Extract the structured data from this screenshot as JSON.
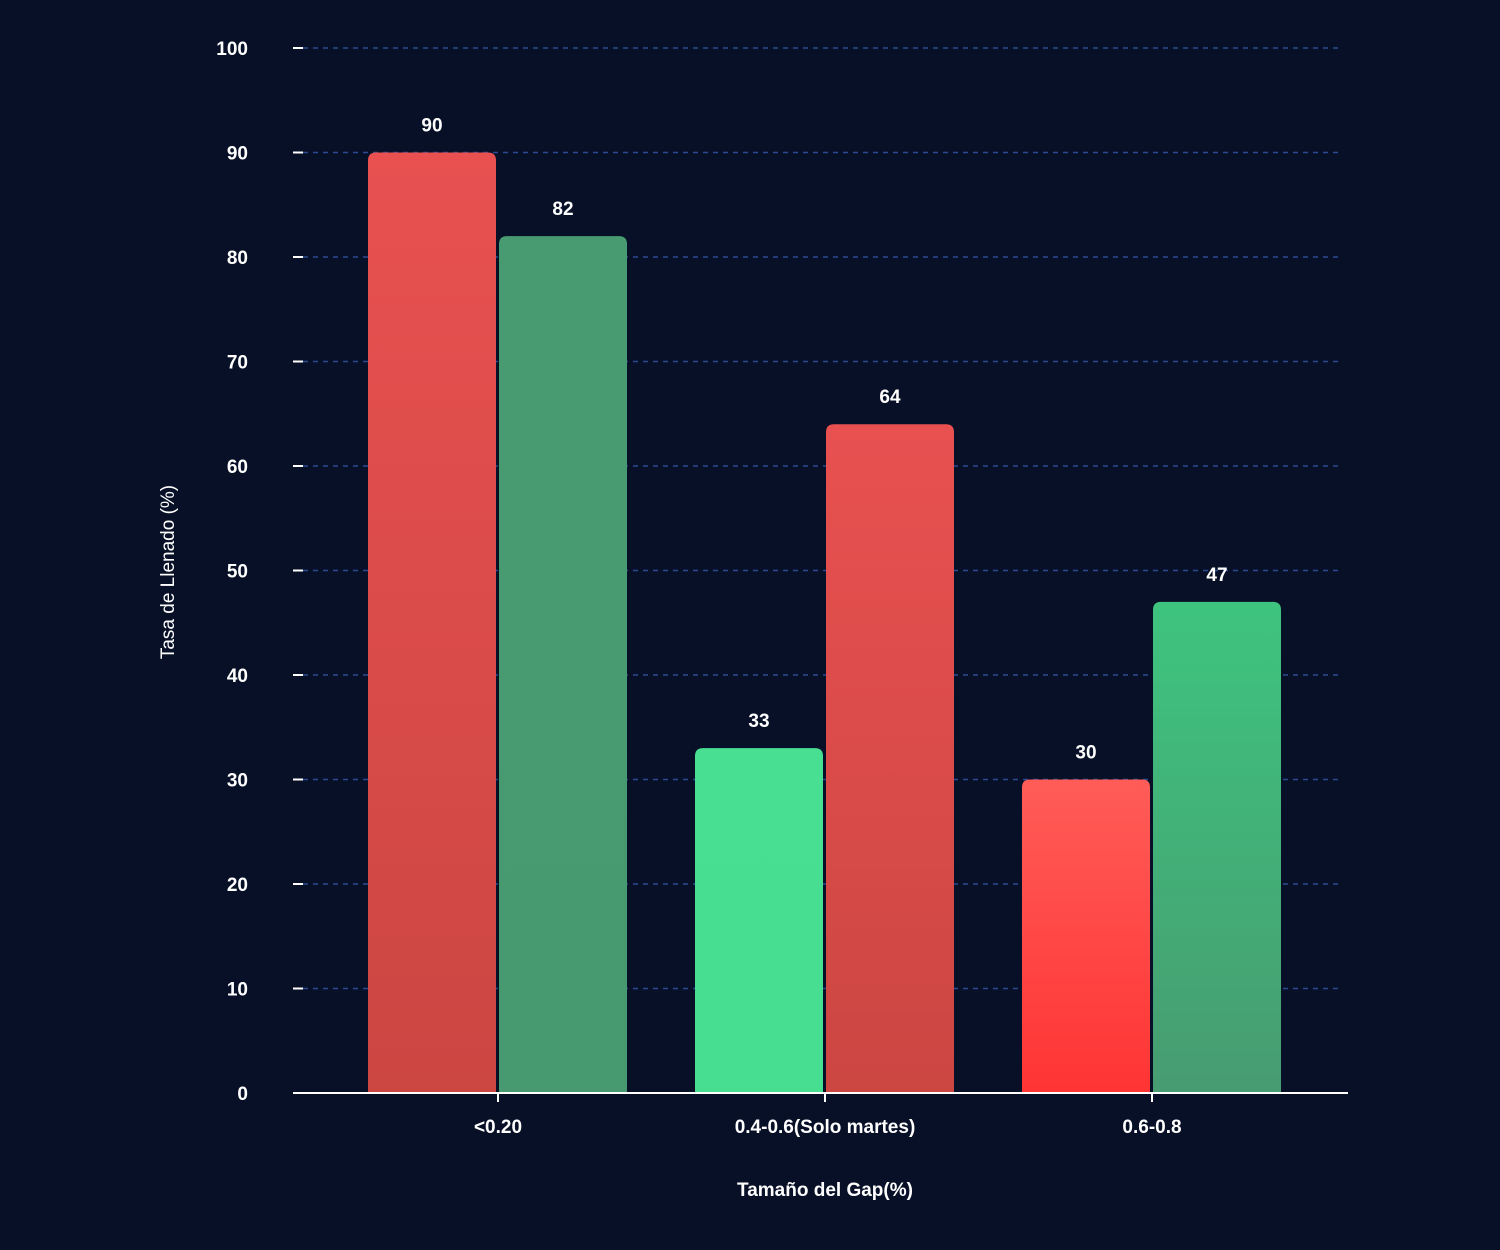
{
  "chart_data": {
    "type": "bar",
    "title": "",
    "xlabel": "Tamaño del Gap(%)",
    "ylabel": "Tasa de Llenado (%)",
    "ylim": [
      0,
      100
    ],
    "yticks": [
      0,
      10,
      20,
      30,
      40,
      50,
      60,
      70,
      80,
      90,
      100
    ],
    "grid": true,
    "legend": "none",
    "categories": [
      "<0.20",
      "0.4-0.6(Solo martes)",
      "0.6-0.8"
    ],
    "bars": [
      [
        {
          "value": 90,
          "label": "90",
          "color": "red"
        },
        {
          "value": 82,
          "label": "82",
          "color": "green-dark"
        }
      ],
      [
        {
          "value": 33,
          "label": "33",
          "color": "green-bright"
        },
        {
          "value": 64,
          "label": "64",
          "color": "red"
        }
      ],
      [
        {
          "value": 30,
          "label": "30",
          "color": "red-bright"
        },
        {
          "value": 47,
          "label": "47",
          "color": "green"
        }
      ]
    ],
    "colors": {
      "background": "#071026",
      "grid": "#2b4a94",
      "axis": "#ffffff",
      "red": "#e0504f",
      "red-bright": "#ff4b47",
      "green-dark": "#479a6f",
      "green-bright": "#47df93",
      "green": "#3fb47a"
    }
  }
}
